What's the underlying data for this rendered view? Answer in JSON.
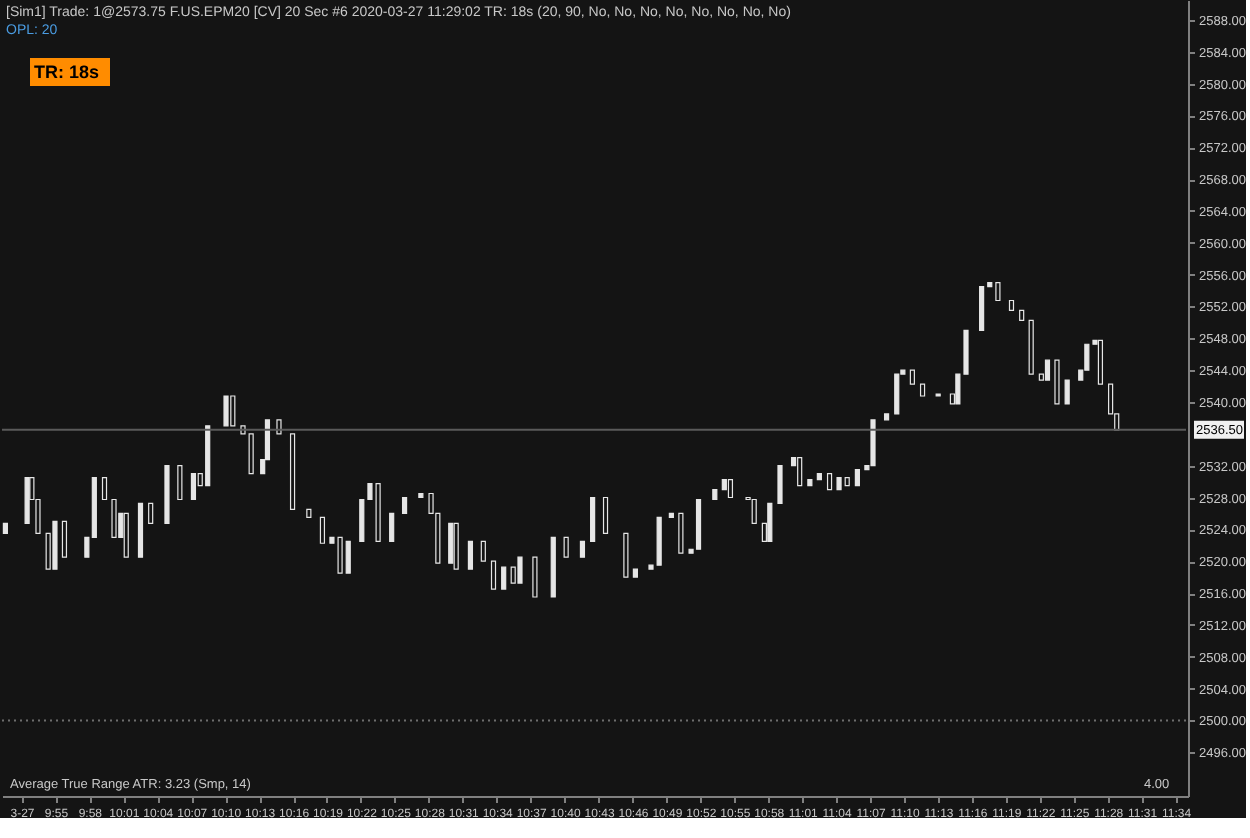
{
  "chart_data": {
    "type": "candlestick",
    "title": "[Sim1] Trade: 1@2573.75 F.US.EPM20 [CV] 20 Sec #6 2020-03-27 11:29:02 TR: 18s (20, 90, No, No, No, No, No, No, No, No)",
    "subtitle": "OPL: 20",
    "annotations": [
      "TR: 18s",
      "Average True Range ATR: 3.23 (Smp, 14)",
      "4.00"
    ],
    "color": "#e6e6e6",
    "x": [
      9.843,
      9.875,
      9.882,
      9.891,
      9.906,
      9.916,
      9.93,
      9.963,
      9.974,
      9.989,
      10.003,
      10.013,
      10.021,
      10.042,
      10.057,
      10.081,
      10.1,
      10.12,
      10.13,
      10.141,
      10.168,
      10.178,
      10.193,
      10.205,
      10.222,
      10.229,
      10.246,
      10.266,
      10.29,
      10.31,
      10.324,
      10.336,
      10.348,
      10.368,
      10.38,
      10.392,
      10.412,
      10.431,
      10.455,
      10.47,
      10.48,
      10.499,
      10.507,
      10.528,
      10.547,
      10.562,
      10.577,
      10.591,
      10.601,
      10.623,
      10.65,
      10.669,
      10.693,
      10.708,
      10.727,
      10.757,
      10.771,
      10.794,
      10.806,
      10.824,
      10.838,
      10.853,
      10.864,
      10.888,
      10.902,
      10.911,
      10.937,
      10.946,
      10.961,
      10.969,
      10.984,
      11.004,
      11.013,
      11.028,
      11.042,
      11.057,
      11.071,
      11.083,
      11.098,
      11.112,
      11.121,
      11.141,
      11.156,
      11.165,
      11.179,
      11.194,
      11.217,
      11.238,
      11.246,
      11.258,
      11.281,
      11.293,
      11.305,
      11.325,
      11.34,
      11.354,
      11.369,
      11.378,
      11.392,
      11.407,
      11.427,
      11.436,
      11.448,
      11.456,
      11.471,
      11.48
    ],
    "ohlc": [
      [
        2523.5,
        2524.75,
        2523.5,
        2524.75
      ],
      [
        2524.75,
        2530.5,
        2524.75,
        2530.5
      ],
      [
        2530.5,
        2530.5,
        2527.75,
        2527.75
      ],
      [
        2527.75,
        2527.75,
        2523.5,
        2523.5
      ],
      [
        2523.5,
        2523.5,
        2519,
        2519
      ],
      [
        2519,
        2525,
        2519,
        2525
      ],
      [
        2525,
        2525,
        2520.5,
        2520.5
      ],
      [
        2520.5,
        2523,
        2520.5,
        2523
      ],
      [
        2523,
        2530.5,
        2523,
        2530.5
      ],
      [
        2530.5,
        2530.5,
        2527.75,
        2527.75
      ],
      [
        2527.75,
        2527.75,
        2523,
        2523
      ],
      [
        2523,
        2526,
        2523,
        2526
      ],
      [
        2526,
        2526,
        2520.5,
        2520.5
      ],
      [
        2520.5,
        2527.25,
        2520.5,
        2527.25
      ],
      [
        2527.25,
        2527.25,
        2524.75,
        2524.75
      ],
      [
        2524.75,
        2532,
        2524.75,
        2532
      ],
      [
        2532,
        2532,
        2527.75,
        2527.75
      ],
      [
        2527.75,
        2531,
        2527.75,
        2531
      ],
      [
        2531,
        2531,
        2529.5,
        2529.5
      ],
      [
        2529.5,
        2537,
        2529.5,
        2537
      ],
      [
        2537,
        2540.75,
        2537,
        2540.75
      ],
      [
        2540.75,
        2540.75,
        2537,
        2537
      ],
      [
        2537,
        2537,
        2536,
        2536
      ],
      [
        2536,
        2536,
        2531,
        2531
      ],
      [
        2531,
        2532.75,
        2531,
        2532.75
      ],
      [
        2532.75,
        2537.75,
        2532.75,
        2537.75
      ],
      [
        2537.75,
        2537.75,
        2536,
        2536
      ],
      [
        2536,
        2536,
        2526.5,
        2526.5
      ],
      [
        2526.5,
        2526.5,
        2525.5,
        2525.5
      ],
      [
        2525.5,
        2525.5,
        2522.25,
        2522.25
      ],
      [
        2522.25,
        2523,
        2522.25,
        2523
      ],
      [
        2523,
        2523,
        2518.5,
        2518.5
      ],
      [
        2518.5,
        2522.5,
        2518.5,
        2522.5
      ],
      [
        2522.5,
        2527.75,
        2522.5,
        2527.75
      ],
      [
        2527.75,
        2529.75,
        2527.75,
        2529.75
      ],
      [
        2529.75,
        2529.75,
        2522.5,
        2522.5
      ],
      [
        2522.5,
        2526,
        2522.5,
        2526
      ],
      [
        2526,
        2528,
        2526,
        2528
      ],
      [
        2528,
        2528.5,
        2528,
        2528.5
      ],
      [
        2528.5,
        2528.5,
        2526,
        2526
      ],
      [
        2526,
        2526,
        2519.75,
        2519.75
      ],
      [
        2519.75,
        2524.75,
        2519.75,
        2524.75
      ],
      [
        2524.75,
        2524.75,
        2519,
        2519
      ],
      [
        2519,
        2522.5,
        2519,
        2522.5
      ],
      [
        2522.5,
        2522.5,
        2520,
        2520
      ],
      [
        2520,
        2520,
        2516.5,
        2516.5
      ],
      [
        2516.5,
        2519.25,
        2516.5,
        2519.25
      ],
      [
        2519.25,
        2519.25,
        2517.25,
        2517.25
      ],
      [
        2517.25,
        2520.5,
        2517.25,
        2520.5
      ],
      [
        2520.5,
        2520.5,
        2515.5,
        2515.5
      ],
      [
        2515.5,
        2523,
        2515.5,
        2523
      ],
      [
        2523,
        2523,
        2520.5,
        2520.5
      ],
      [
        2520.5,
        2522.5,
        2520.5,
        2522.5
      ],
      [
        2522.5,
        2528,
        2522.5,
        2528
      ],
      [
        2528,
        2528,
        2523.5,
        2523.5
      ],
      [
        2523.5,
        2523.5,
        2518,
        2518
      ],
      [
        2518,
        2519,
        2518,
        2519
      ],
      [
        2519,
        2519.5,
        2519,
        2519.5
      ],
      [
        2519.5,
        2525.5,
        2519.5,
        2525.5
      ],
      [
        2525.5,
        2526,
        2525.5,
        2526
      ],
      [
        2526,
        2526,
        2521,
        2521
      ],
      [
        2521,
        2521.5,
        2521,
        2521.5
      ],
      [
        2521.5,
        2527.75,
        2521.5,
        2527.75
      ],
      [
        2527.75,
        2529,
        2527.75,
        2529
      ],
      [
        2529,
        2530.25,
        2529,
        2530.25
      ],
      [
        2530.25,
        2530.25,
        2528,
        2528
      ],
      [
        2528,
        2528,
        2527.75,
        2527.75
      ],
      [
        2527.75,
        2527.75,
        2524.75,
        2524.75
      ],
      [
        2524.75,
        2524.75,
        2522.5,
        2522.5
      ],
      [
        2522.5,
        2527.25,
        2522.5,
        2527.25
      ],
      [
        2527.25,
        2532,
        2527.25,
        2532
      ],
      [
        2532,
        2533,
        2532,
        2533
      ],
      [
        2533,
        2533,
        2529.5,
        2529.5
      ],
      [
        2529.5,
        2530.25,
        2529.5,
        2530.25
      ],
      [
        2530.25,
        2531,
        2530.25,
        2531
      ],
      [
        2531,
        2531,
        2529,
        2529
      ],
      [
        2529,
        2530.5,
        2529,
        2530.5
      ],
      [
        2530.5,
        2530.5,
        2529.5,
        2529.5
      ],
      [
        2529.5,
        2531.5,
        2529.5,
        2531.5
      ],
      [
        2531.5,
        2532,
        2531.5,
        2532
      ],
      [
        2532,
        2537.75,
        2532,
        2537.75
      ],
      [
        2537.75,
        2538.5,
        2537.75,
        2538.5
      ],
      [
        2538.5,
        2543.5,
        2538.5,
        2543.5
      ],
      [
        2543.5,
        2544,
        2543.5,
        2544
      ],
      [
        2544,
        2544,
        2542.25,
        2542.25
      ],
      [
        2542.25,
        2542.25,
        2540.75,
        2540.75
      ],
      [
        2540.75,
        2541,
        2540.75,
        2541
      ],
      [
        2541,
        2541,
        2539.75,
        2539.75
      ],
      [
        2539.75,
        2543.5,
        2539.75,
        2543.5
      ],
      [
        2543.5,
        2549,
        2543.5,
        2549
      ],
      [
        2549,
        2554.5,
        2549,
        2554.5
      ],
      [
        2554.5,
        2555,
        2554.5,
        2555
      ],
      [
        2555,
        2555,
        2552.75,
        2552.75
      ],
      [
        2552.75,
        2552.75,
        2551.5,
        2551.5
      ],
      [
        2551.5,
        2551.5,
        2550.25,
        2550.25
      ],
      [
        2550.25,
        2550.25,
        2543.5,
        2543.5
      ],
      [
        2543.5,
        2543.5,
        2542.75,
        2542.75
      ],
      [
        2542.75,
        2545.25,
        2542.75,
        2545.25
      ],
      [
        2545.25,
        2545.25,
        2539.75,
        2539.75
      ],
      [
        2539.75,
        2542.75,
        2539.75,
        2542.75
      ],
      [
        2542.75,
        2544,
        2542.75,
        2544
      ],
      [
        2544,
        2547.25,
        2544,
        2547.25
      ],
      [
        2547.25,
        2547.75,
        2547.25,
        2547.75
      ],
      [
        2547.75,
        2547.75,
        2542.25,
        2542.25
      ],
      [
        2542.25,
        2542.25,
        2538.5,
        2538.5
      ],
      [
        2538.5,
        2538.5,
        2536.5,
        2536.5
      ]
    ],
    "xlim": [
      9.838,
      11.585
    ],
    "xticks": [
      {
        "value": 9.8667,
        "label": "3-27"
      },
      {
        "value": 9.9167,
        "label": "9:55"
      },
      {
        "value": 9.9667,
        "label": "9:58"
      },
      {
        "value": 10.0167,
        "label": "10:01"
      },
      {
        "value": 10.0667,
        "label": "10:04"
      },
      {
        "value": 10.1167,
        "label": "10:07"
      },
      {
        "value": 10.1667,
        "label": "10:10"
      },
      {
        "value": 10.2167,
        "label": "10:13"
      },
      {
        "value": 10.2667,
        "label": "10:16"
      },
      {
        "value": 10.3167,
        "label": "10:19"
      },
      {
        "value": 10.3667,
        "label": "10:22"
      },
      {
        "value": 10.4167,
        "label": "10:25"
      },
      {
        "value": 10.4667,
        "label": "10:28"
      },
      {
        "value": 10.5167,
        "label": "10:31"
      },
      {
        "value": 10.5667,
        "label": "10:34"
      },
      {
        "value": 10.6167,
        "label": "10:37"
      },
      {
        "value": 10.6667,
        "label": "10:40"
      },
      {
        "value": 10.7167,
        "label": "10:43"
      },
      {
        "value": 10.7667,
        "label": "10:46"
      },
      {
        "value": 10.8167,
        "label": "10:49"
      },
      {
        "value": 10.8667,
        "label": "10:52"
      },
      {
        "value": 10.9167,
        "label": "10:55"
      },
      {
        "value": 10.9667,
        "label": "10:58"
      },
      {
        "value": 11.0167,
        "label": "11:01"
      },
      {
        "value": 11.0667,
        "label": "11:04"
      },
      {
        "value": 11.1167,
        "label": "11:07"
      },
      {
        "value": 11.1667,
        "label": "11:10"
      },
      {
        "value": 11.2167,
        "label": "11:13"
      },
      {
        "value": 11.2667,
        "label": "11:16"
      },
      {
        "value": 11.3167,
        "label": "11:19"
      },
      {
        "value": 11.3667,
        "label": "11:22"
      },
      {
        "value": 11.4167,
        "label": "11:25"
      },
      {
        "value": 11.4667,
        "label": "11:28"
      },
      {
        "value": 11.5167,
        "label": "11:31"
      },
      {
        "value": 11.5667,
        "label": "11:34"
      }
    ],
    "ylim": [
      2490.5,
      2590.5
    ],
    "yticks": [
      {
        "value": 2496,
        "label": "2496.00"
      },
      {
        "value": 2500,
        "label": "2500.00"
      },
      {
        "value": 2504,
        "label": "2504.00"
      },
      {
        "value": 2508,
        "label": "2508.00"
      },
      {
        "value": 2512,
        "label": "2512.00"
      },
      {
        "value": 2516,
        "label": "2516.00"
      },
      {
        "value": 2520,
        "label": "2520.00"
      },
      {
        "value": 2524,
        "label": "2524.00"
      },
      {
        "value": 2528,
        "label": "2528.00"
      },
      {
        "value": 2532,
        "label": "2532.00"
      },
      {
        "value": 2540,
        "label": "2540.00"
      },
      {
        "value": 2544,
        "label": "2544.00"
      },
      {
        "value": 2548,
        "label": "2548.00"
      },
      {
        "value": 2552,
        "label": "2552.00"
      },
      {
        "value": 2556,
        "label": "2556.00"
      },
      {
        "value": 2560,
        "label": "2560.00"
      },
      {
        "value": 2564,
        "label": "2564.00"
      },
      {
        "value": 2568,
        "label": "2568.00"
      },
      {
        "value": 2572,
        "label": "2572.00"
      },
      {
        "value": 2576,
        "label": "2576.00"
      },
      {
        "value": 2580,
        "label": "2580.00"
      },
      {
        "value": 2584,
        "label": "2584.00"
      },
      {
        "value": 2588,
        "label": "2588.00"
      }
    ],
    "ref_lines": [
      {
        "axis": "y",
        "value": 2536.5,
        "label": "2536.50",
        "color": "#5a5a5a",
        "line_style": "solid"
      },
      {
        "axis": "y",
        "value": 2500,
        "label": null,
        "color": "#6e6e6e",
        "line_style": "dotted"
      }
    ],
    "grid": false
  }
}
